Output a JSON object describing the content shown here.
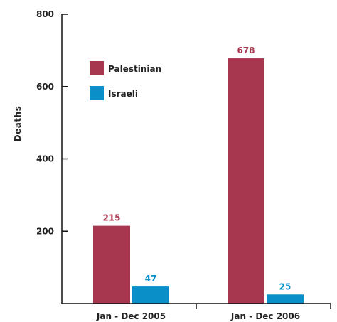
{
  "chart_data": {
    "type": "bar",
    "categories": [
      "Jan - Dec 2005",
      "Jan - Dec 2006"
    ],
    "series": [
      {
        "name": "Palestinian",
        "values": [
          215,
          678
        ],
        "color": "#a6374f"
      },
      {
        "name": "Israeli",
        "values": [
          47,
          25
        ],
        "color": "#0a8fc9"
      }
    ],
    "ylabel": "Deaths",
    "xlabel": "",
    "ylim": [
      0,
      800
    ],
    "yticks": [
      "200",
      "400",
      "600",
      "800"
    ],
    "grid": false,
    "legend": "top-left"
  }
}
